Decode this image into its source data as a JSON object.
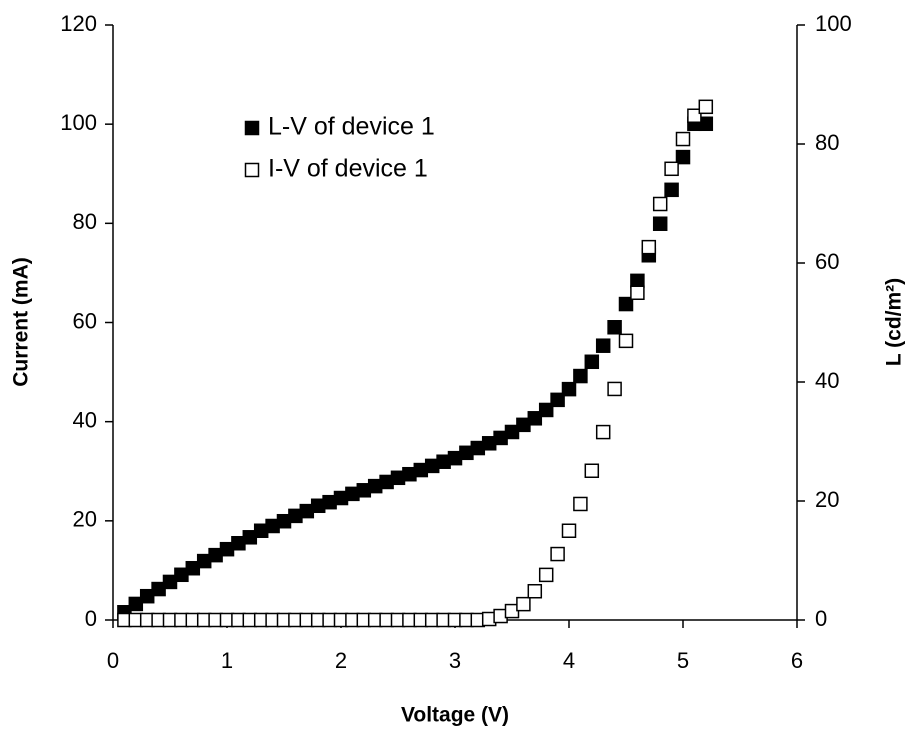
{
  "chart_data": {
    "type": "scatter",
    "x_label": "Voltage (V)",
    "y_label": "Current (mA)",
    "y2_label": "L (cd/m²)",
    "x": [
      0.1,
      0.2,
      0.3,
      0.4,
      0.5,
      0.6,
      0.7,
      0.8,
      0.9,
      1.0,
      1.1,
      1.2,
      1.3,
      1.4,
      1.5,
      1.6,
      1.7,
      1.8,
      1.9,
      2.0,
      2.1,
      2.2,
      2.3,
      2.4,
      2.5,
      2.6,
      2.7,
      2.8,
      2.9,
      3.0,
      3.1,
      3.2,
      3.3,
      3.4,
      3.5,
      3.6,
      3.7,
      3.8,
      3.9,
      4.0,
      4.1,
      4.2,
      4.3,
      4.4,
      4.5,
      4.6,
      4.7,
      4.8,
      4.9,
      5.0,
      5.1,
      5.2
    ],
    "series": [
      {
        "name": "L-V of device 1",
        "color": "#000000",
        "marker": "filled",
        "axis": "y2",
        "values": [
          1.3,
          2.7,
          4.0,
          5.2,
          6.4,
          7.6,
          8.7,
          9.9,
          10.9,
          11.9,
          12.9,
          13.9,
          15.0,
          15.8,
          16.6,
          17.5,
          18.3,
          19.2,
          19.8,
          20.5,
          21.2,
          21.8,
          22.5,
          23.2,
          23.9,
          24.5,
          25.2,
          25.9,
          26.6,
          27.2,
          28.1,
          28.9,
          29.7,
          30.6,
          31.6,
          32.8,
          33.9,
          35.3,
          37.0,
          38.8,
          41.0,
          43.4,
          46.1,
          49.2,
          53.1,
          57.0,
          61.3,
          66.6,
          72.3,
          77.8,
          83.4,
          83.4
        ]
      },
      {
        "name": "I-V of device 1",
        "color": "#000000",
        "marker": "open",
        "axis": "y",
        "values": [
          0,
          0,
          0,
          0,
          0,
          0,
          0,
          0,
          0,
          0,
          0,
          0,
          0,
          0,
          0,
          0,
          0,
          0,
          0,
          0,
          0,
          0,
          0,
          0,
          0,
          0,
          0,
          0,
          0,
          0,
          0,
          0,
          0.2,
          0.8,
          1.8,
          3.2,
          5.8,
          9.1,
          13.3,
          18.0,
          23.4,
          30.1,
          37.9,
          46.6,
          56.3,
          66.0,
          75.2,
          83.9,
          91.0,
          97.0,
          101.7,
          103.5
        ]
      }
    ],
    "xlim": [
      0,
      6
    ],
    "xticks": [
      0,
      1,
      2,
      3,
      4,
      5,
      6
    ],
    "ylim": [
      0,
      120
    ],
    "yticks": [
      0,
      20,
      40,
      60,
      80,
      100,
      120
    ],
    "y2lim": [
      0,
      100
    ],
    "y2ticks": [
      0,
      20,
      40,
      60,
      80,
      100
    ],
    "legend": "upper-left",
    "grid": false
  }
}
